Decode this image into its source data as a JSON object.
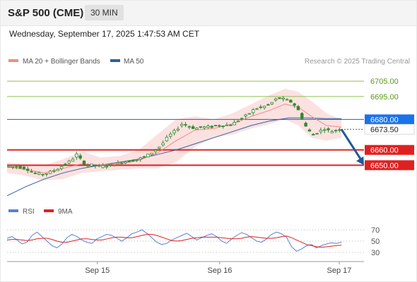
{
  "header": {
    "title": "S&P 500 (CME)",
    "timeframe": "30 MIN",
    "datetime": "Wednesday, September 17, 2025 1:47:53 AM CET"
  },
  "legend": {
    "ma20_label": "MA 20 + Bollinger Bands",
    "ma50_label": "MA 50",
    "copyright": "Research © 2025 Trading Central",
    "rsi_label": "RSI",
    "rsi_ma_label": "9MA"
  },
  "colors": {
    "ma20": "#f28b82",
    "bollinger_fill": "#fbdcdc",
    "ma50": "#2e5fa3",
    "resistance": "#8bc34a",
    "pivot": "#1565c0",
    "support": "#e02020",
    "candle": "#2f8a2f",
    "rsi": "#5b7fd6",
    "rsi_ma": "#e02020",
    "arrow": "#1f5a9e",
    "current_price_tag": "#ffffff"
  },
  "chart_data": [
    {
      "type": "candlestick",
      "panel": "price",
      "x_ticks": [
        "Sep 15",
        "Sep 16",
        "Sep 17"
      ],
      "ylim": [
        6628,
        6712
      ],
      "levels": [
        {
          "label": "6705.00",
          "value": 6705,
          "kind": "resistance"
        },
        {
          "label": "6695.00",
          "value": 6695,
          "kind": "resistance"
        },
        {
          "label": "6680.00",
          "value": 6680,
          "kind": "pivot"
        },
        {
          "label": "6673.50",
          "value": 6673.5,
          "kind": "current"
        },
        {
          "label": "6660.00",
          "value": 6660,
          "kind": "support"
        },
        {
          "label": "6650.00",
          "value": 6650,
          "kind": "support"
        }
      ],
      "price_path": [
        [
          0,
          6649
        ],
        [
          6,
          6649
        ],
        [
          10,
          6648
        ],
        [
          14,
          6645
        ],
        [
          18,
          6644
        ],
        [
          22,
          6645
        ],
        [
          26,
          6647
        ],
        [
          30,
          6650
        ],
        [
          34,
          6653
        ],
        [
          37,
          6657
        ],
        [
          39,
          6654
        ],
        [
          42,
          6650
        ],
        [
          46,
          6650
        ],
        [
          50,
          6649
        ],
        [
          54,
          6650
        ],
        [
          58,
          6651
        ],
        [
          62,
          6652
        ],
        [
          66,
          6653
        ],
        [
          70,
          6654
        ],
        [
          74,
          6656
        ],
        [
          78,
          6659
        ],
        [
          82,
          6663
        ],
        [
          86,
          6669
        ],
        [
          90,
          6673
        ],
        [
          93,
          6677
        ],
        [
          96,
          6676
        ],
        [
          100,
          6674
        ],
        [
          104,
          6675
        ],
        [
          108,
          6675
        ],
        [
          112,
          6676
        ],
        [
          116,
          6676
        ],
        [
          120,
          6677
        ],
        [
          124,
          6680
        ],
        [
          128,
          6683
        ],
        [
          132,
          6687
        ],
        [
          136,
          6688
        ],
        [
          140,
          6690
        ],
        [
          144,
          6694
        ],
        [
          148,
          6693
        ],
        [
          152,
          6691
        ],
        [
          154,
          6688
        ],
        [
          156,
          6684
        ],
        [
          158,
          6678
        ],
        [
          160,
          6673
        ],
        [
          163,
          6670
        ],
        [
          166,
          6672
        ],
        [
          169,
          6674
        ],
        [
          172,
          6672
        ],
        [
          175,
          6673
        ],
        [
          178,
          6673.5
        ]
      ],
      "ma50_path": [
        [
          0,
          6630
        ],
        [
          10,
          6636
        ],
        [
          20,
          6641
        ],
        [
          30,
          6645
        ],
        [
          40,
          6648
        ],
        [
          50,
          6650
        ],
        [
          60,
          6652
        ],
        [
          70,
          6654
        ],
        [
          80,
          6657
        ],
        [
          90,
          6660
        ],
        [
          100,
          6664
        ],
        [
          110,
          6668
        ],
        [
          120,
          6672
        ],
        [
          130,
          6676
        ],
        [
          140,
          6679
        ],
        [
          150,
          6681
        ],
        [
          160,
          6681
        ],
        [
          170,
          6680.5
        ],
        [
          178,
          6680.5
        ]
      ],
      "ma20_path": [
        [
          0,
          6649
        ],
        [
          10,
          6647
        ],
        [
          20,
          6645
        ],
        [
          30,
          6648
        ],
        [
          40,
          6651
        ],
        [
          50,
          6650
        ],
        [
          60,
          6651
        ],
        [
          70,
          6653
        ],
        [
          80,
          6658
        ],
        [
          90,
          6666
        ],
        [
          100,
          6673
        ],
        [
          110,
          6674
        ],
        [
          120,
          6677
        ],
        [
          130,
          6682
        ],
        [
          140,
          6686
        ],
        [
          148,
          6690
        ],
        [
          155,
          6688
        ],
        [
          162,
          6682
        ],
        [
          170,
          6676
        ],
        [
          178,
          6675
        ]
      ],
      "bollinger_upper": [
        [
          0,
          6652
        ],
        [
          10,
          6650
        ],
        [
          20,
          6650
        ],
        [
          30,
          6654
        ],
        [
          40,
          6659
        ],
        [
          50,
          6655
        ],
        [
          60,
          6656
        ],
        [
          70,
          6660
        ],
        [
          80,
          6670
        ],
        [
          90,
          6680
        ],
        [
          100,
          6682
        ],
        [
          110,
          6680
        ],
        [
          120,
          6684
        ],
        [
          130,
          6690
        ],
        [
          140,
          6696
        ],
        [
          148,
          6700
        ],
        [
          155,
          6698
        ],
        [
          162,
          6692
        ],
        [
          170,
          6684
        ],
        [
          178,
          6680
        ]
      ],
      "bollinger_lower": [
        [
          0,
          6645
        ],
        [
          10,
          6643
        ],
        [
          20,
          6640
        ],
        [
          30,
          6641
        ],
        [
          40,
          6645
        ],
        [
          50,
          6646
        ],
        [
          60,
          6647
        ],
        [
          70,
          6648
        ],
        [
          80,
          6648
        ],
        [
          90,
          6652
        ],
        [
          100,
          6662
        ],
        [
          110,
          6668
        ],
        [
          120,
          6670
        ],
        [
          130,
          6674
        ],
        [
          140,
          6677
        ],
        [
          148,
          6680
        ],
        [
          155,
          6676
        ],
        [
          162,
          6668
        ],
        [
          170,
          6666
        ],
        [
          178,
          6668
        ]
      ],
      "forecast_arrow": {
        "from": [
          178,
          6673.5
        ],
        "to": [
          190,
          6650
        ]
      }
    },
    {
      "type": "line",
      "panel": "rsi",
      "ylim": [
        20,
        80
      ],
      "y_ticks": [
        70,
        50,
        30
      ],
      "series": [
        {
          "name": "RSI",
          "values": [
            55,
            58,
            52,
            45,
            48,
            60,
            66,
            58,
            50,
            42,
            38,
            45,
            56,
            62,
            58,
            52,
            48,
            46,
            54,
            58,
            62,
            60,
            55,
            50,
            56,
            63,
            66,
            70,
            64,
            56,
            48,
            44,
            46,
            52,
            56,
            60,
            64,
            58,
            52,
            56,
            60,
            63,
            58,
            50,
            46,
            54,
            60,
            65,
            62,
            56,
            50,
            48,
            54,
            62,
            66,
            63,
            57,
            40,
            32,
            36,
            42,
            44,
            38,
            42,
            45,
            47,
            46,
            48
          ]
        },
        {
          "name": "9MA",
          "values": [
            52,
            53,
            53,
            52,
            51,
            52,
            54,
            55,
            55,
            53,
            50,
            48,
            48,
            50,
            52,
            54,
            54,
            53,
            52,
            52,
            54,
            56,
            57,
            57,
            56,
            56,
            58,
            60,
            62,
            62,
            60,
            57,
            54,
            51,
            50,
            51,
            53,
            55,
            56,
            57,
            57,
            57,
            57,
            56,
            55,
            54,
            54,
            55,
            57,
            58,
            57,
            56,
            55,
            55,
            56,
            58,
            59,
            56,
            52,
            48,
            44,
            42,
            40,
            39,
            40,
            41,
            42,
            43
          ]
        }
      ]
    }
  ]
}
